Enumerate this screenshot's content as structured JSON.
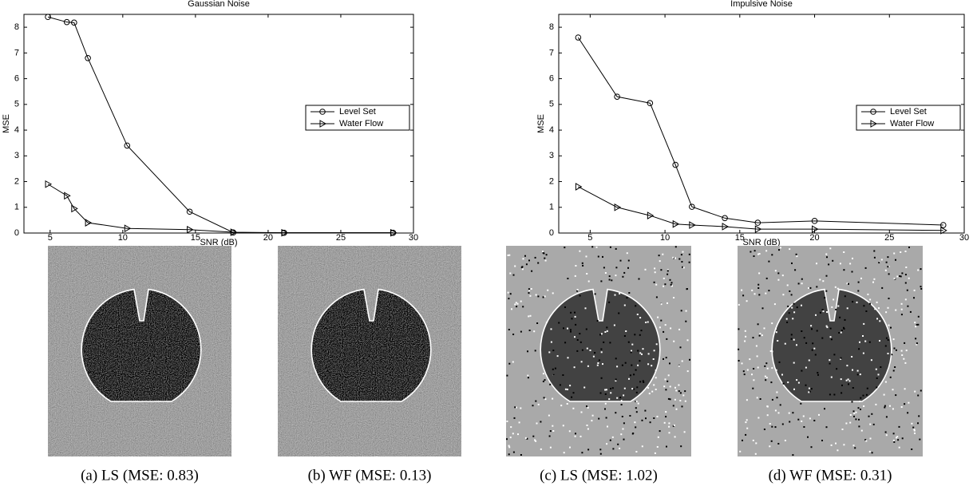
{
  "chart_data": [
    {
      "type": "line",
      "title": "Gaussian Noise",
      "xlabel": "SNR (dB)",
      "ylabel": "MSE",
      "x": [
        4.85,
        6.15,
        6.65,
        7.6,
        10.3,
        14.6,
        17.6,
        21.1,
        28.6
      ],
      "series": [
        {
          "name": "Level Set",
          "color": "#000000",
          "marker": "circle",
          "values": [
            8.4,
            8.2,
            8.18,
            6.8,
            3.4,
            0.83,
            0.02,
            0.01,
            0.01
          ]
        },
        {
          "name": "Water Flow",
          "color": "#000000",
          "marker": "triangle-right",
          "values": [
            1.9,
            1.45,
            0.95,
            0.4,
            0.18,
            0.13,
            0.03,
            0.01,
            0.01
          ]
        }
      ],
      "xlim": [
        3.2,
        30
      ],
      "ylim": [
        0,
        8.5
      ],
      "xticks": [
        5,
        10,
        15,
        20,
        25,
        30
      ],
      "yticks": [
        0,
        1,
        2,
        3,
        4,
        5,
        6,
        7,
        8
      ],
      "legend": "right"
    },
    {
      "type": "line",
      "title": "Impulsive Noise",
      "xlabel": "SNR (dB)",
      "ylabel": "MSE",
      "x": [
        4.2,
        6.8,
        9,
        10.7,
        11.8,
        14,
        16.2,
        20,
        28.6
      ],
      "series": [
        {
          "name": "Level Set",
          "color": "#000000",
          "marker": "circle",
          "values": [
            7.6,
            5.3,
            5.05,
            2.65,
            1.02,
            0.58,
            0.4,
            0.47,
            0.31
          ]
        },
        {
          "name": "Water Flow",
          "color": "#000000",
          "marker": "triangle-right",
          "values": [
            1.8,
            1.0,
            0.68,
            0.35,
            0.31,
            0.25,
            0.15,
            0.15,
            0.1
          ]
        }
      ],
      "xlim": [
        2.9,
        30
      ],
      "ylim": [
        0,
        8.5
      ],
      "xticks": [
        5,
        10,
        15,
        20,
        25,
        30
      ],
      "yticks": [
        0,
        1,
        2,
        3,
        4,
        5,
        6,
        7,
        8
      ],
      "legend": "right"
    }
  ],
  "captions": [
    "(a) LS (MSE: 0.83)",
    "(b) WF (MSE: 0.13)",
    "(c) LS (MSE: 1.02)",
    "(d) WF (MSE: 0.31)"
  ]
}
